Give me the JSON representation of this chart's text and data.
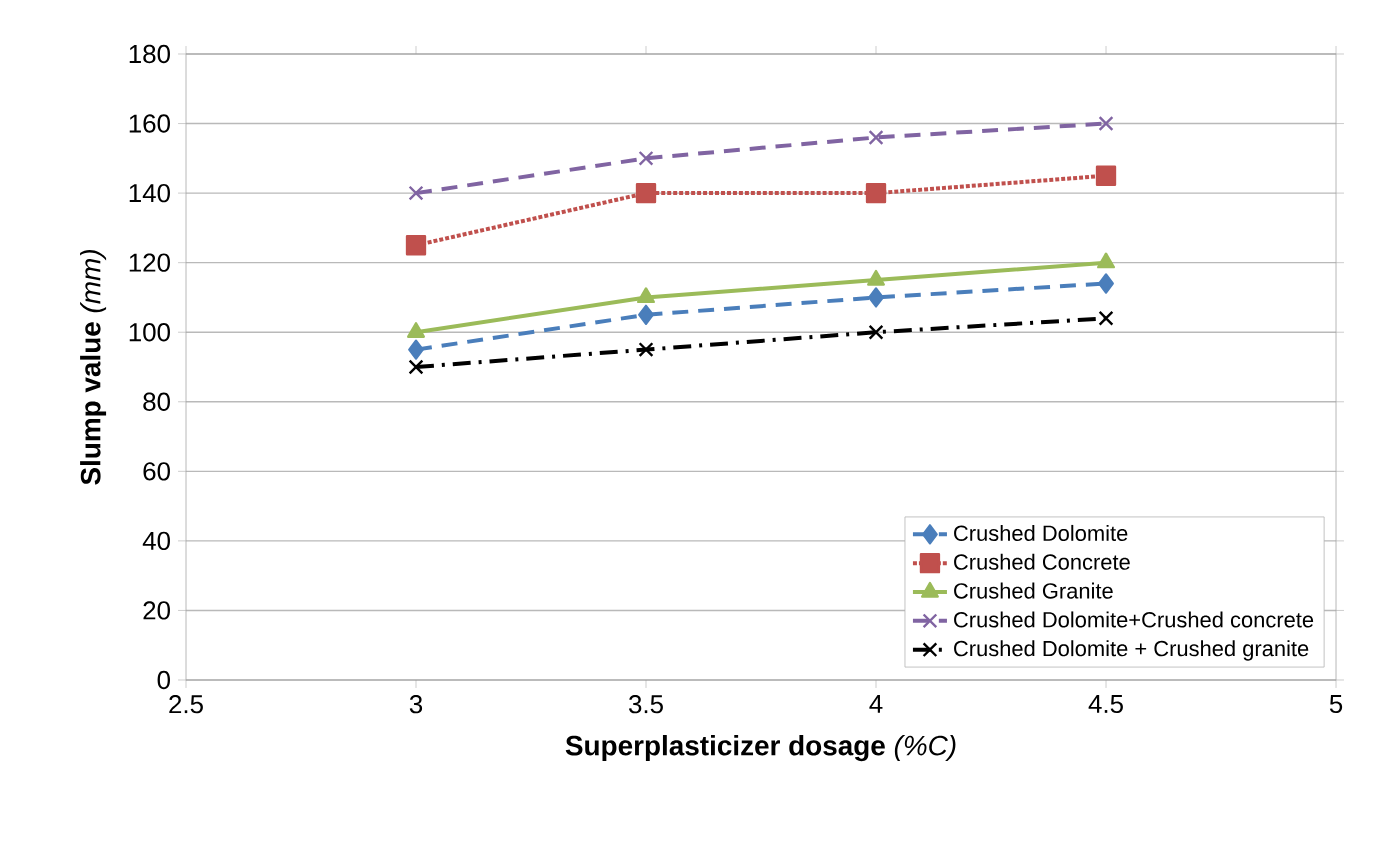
{
  "chart_data": {
    "type": "line",
    "xlabel": "**Superplasticizer dosage** *(%C)*",
    "ylabel": "**Slump value** *(mm)*",
    "x": [
      3,
      3.5,
      4,
      4.5
    ],
    "series": [
      {
        "name": "Crushed Dolomite",
        "color": "#4a7ebb",
        "values": [
          95,
          105,
          110,
          114
        ],
        "marker": "diamond",
        "line_style": "dashed"
      },
      {
        "name": "Crushed Concrete",
        "color": "#c0504d",
        "values": [
          125,
          140,
          140,
          145
        ],
        "marker": "square",
        "line_style": "dotted"
      },
      {
        "name": "Crushed Granite",
        "color": "#9bbb59",
        "values": [
          100,
          110,
          115,
          120
        ],
        "marker": "triangle",
        "line_style": "solid"
      },
      {
        "name": "Crushed Dolomite+Crushed concrete",
        "color": "#8064a2",
        "values": [
          140,
          150,
          156,
          160
        ],
        "marker": "cross",
        "line_style": "dashed"
      },
      {
        "name": "Crushed Dolomite + Crushed granite",
        "color": "#000000",
        "values": [
          90,
          95,
          100,
          104
        ],
        "marker": "cross",
        "line_style": "dashdot"
      }
    ],
    "xlim": [
      2.5,
      5
    ],
    "xticks": [
      2.5,
      3,
      3.5,
      4,
      4.5,
      5
    ],
    "ylim": [
      0,
      180
    ],
    "yticks": [
      0,
      20,
      40,
      60,
      80,
      100,
      120,
      140,
      160,
      180
    ],
    "grid": "y",
    "legend": "bottom right"
  }
}
